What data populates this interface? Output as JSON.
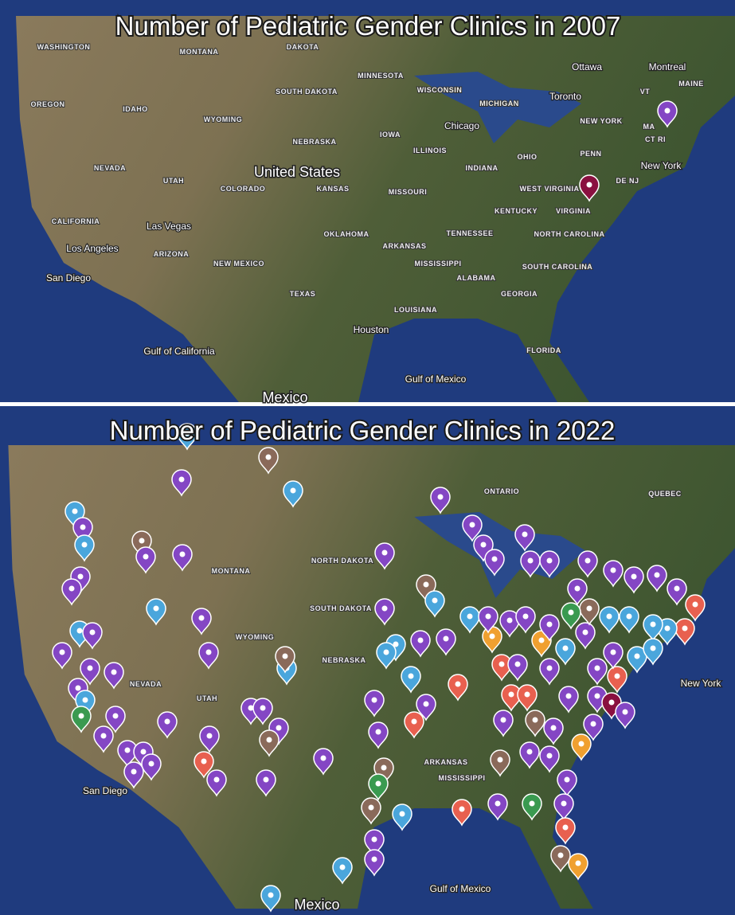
{
  "panels": [
    {
      "title": "Number of Pediatric Gender Clinics in 2007",
      "labels": [
        "WASHINGTON",
        "MONTANA",
        "DAKOTA",
        "MINNESOTA",
        "Ottawa",
        "Montreal",
        "MAINE",
        "SOUTH DAKOTA",
        "WISCONSIN",
        "MICHIGAN",
        "Toronto",
        "VT",
        "OREGON",
        "IDAHO",
        "WYOMING",
        "NEW YORK",
        "MA",
        "Chicago",
        "IOWA",
        "NEBRASKA",
        "ILLINOIS",
        "OHIO",
        "PENN",
        "CT RI",
        "NEVADA",
        "UTAH",
        "United States",
        "COLORADO",
        "INDIANA",
        "WEST VIRGINIA",
        "New York",
        "KANSAS",
        "MISSOURI",
        "DE NJ",
        "KENTUCKY",
        "VIRGINIA",
        "CALIFORNIA",
        "Las Vegas",
        "OKLAHOMA",
        "TENNESSEE",
        "NORTH CAROLINA",
        "Los Angeles",
        "ARIZONA",
        "NEW MEXICO",
        "ARKANSAS",
        "San Diego",
        "MISSISSIPPI",
        "SOUTH CAROLINA",
        "ALABAMA",
        "TEXAS",
        "GEORGIA",
        "LOUISIANA",
        "Houston",
        "FLORIDA",
        "Gulf of Mexico",
        "Gulf of California",
        "Mexico"
      ]
    },
    {
      "title": "Number of Pediatric Gender Clinics in 2022",
      "labels": [
        "ONTARIO",
        "QUEBEC",
        "NORTH DAKOTA",
        "MONTANA",
        "SOUTH DAKOTA",
        "WYOMING",
        "NEBRASKA",
        "NEVADA",
        "UTAH",
        "ARKANSAS",
        "MISSISSIPPI",
        "San Diego",
        "Gulf of Mexico",
        "Mexico",
        "New York"
      ]
    }
  ]
}
